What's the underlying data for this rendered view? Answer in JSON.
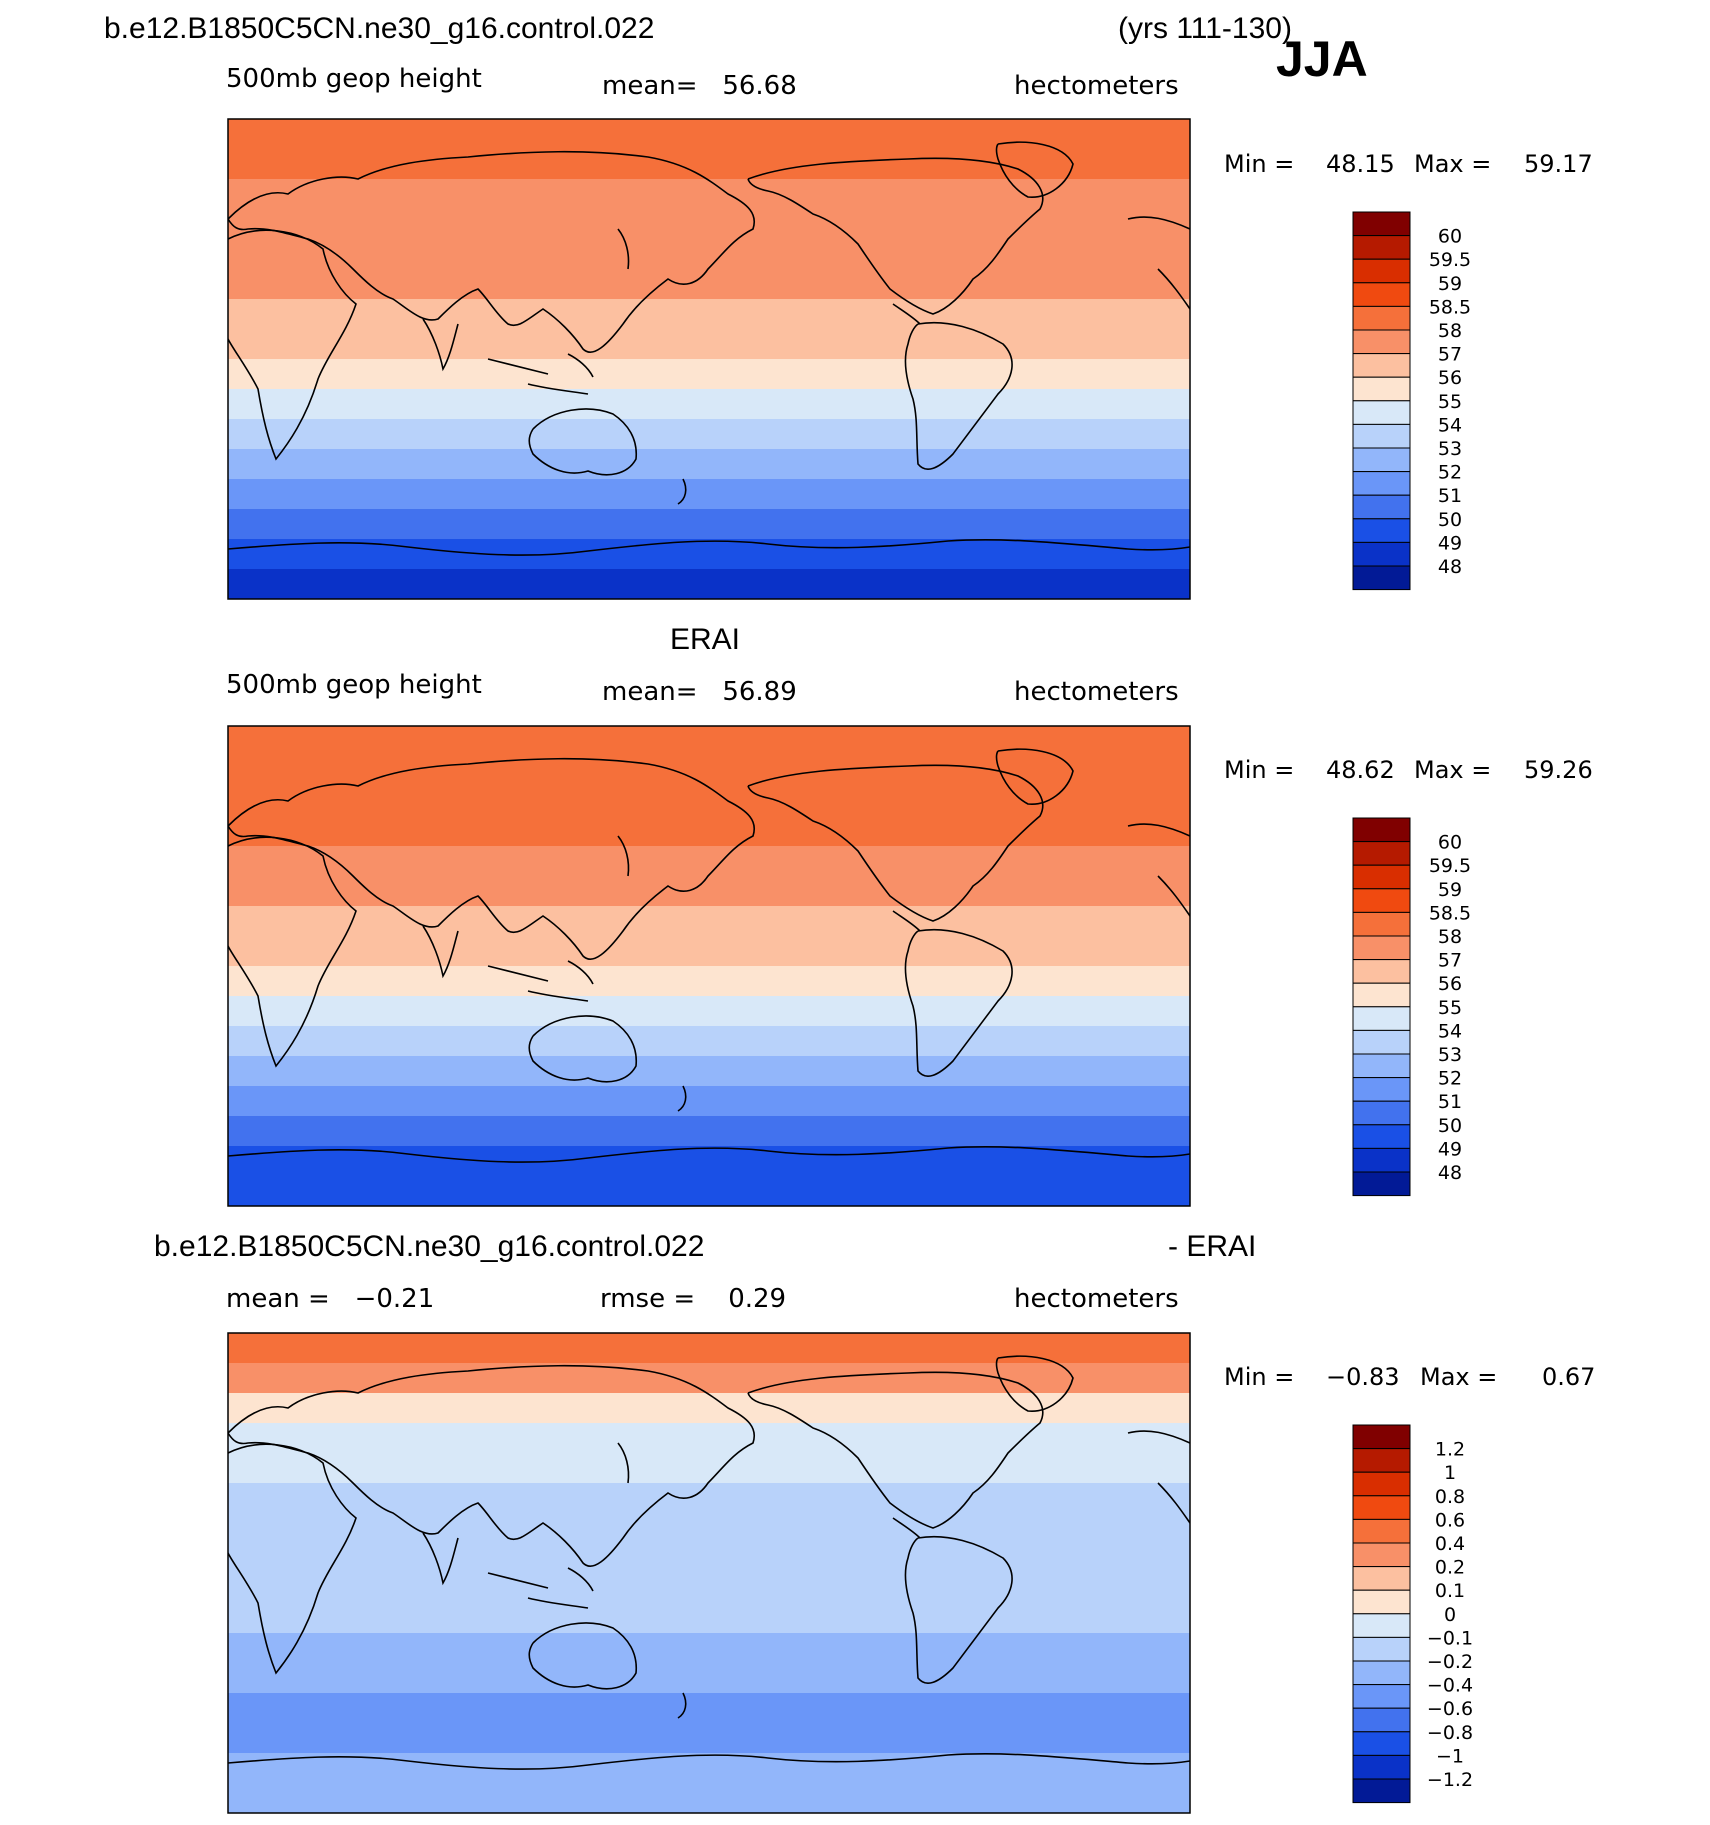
{
  "header": {
    "case_name": "b.e12.B1850C5CN.ne30_g16.control.022",
    "years": "(yrs 111-130)",
    "season": "JJA"
  },
  "panels": [
    {
      "id": "model",
      "title": "",
      "variable": "500mb geop height",
      "stat1": "mean=   56.68",
      "stat2": "",
      "units": "hectometers",
      "minmax": {
        "min_label": "Min =",
        "min": "48.15",
        "max_label": "Max =",
        "max": "59.17"
      },
      "bands": [
        58.4,
        58.2,
        57.9,
        57.6,
        57.3,
        57.0,
        56.5,
        56.0,
        55.4,
        54.7,
        53.6,
        52.4,
        51.3,
        50.2,
        49.3,
        48.7
      ]
    },
    {
      "id": "obs",
      "title": "ERAI",
      "variable": "500mb geop height",
      "stat1": "mean=   56.89",
      "stat2": "",
      "units": "hectometers",
      "minmax": {
        "min_label": "Min =",
        "min": "48.62",
        "max_label": "Max =",
        "max": "59.26"
      },
      "bands": [
        58.3,
        58.4,
        58.3,
        58.0,
        57.7,
        57.3,
        56.8,
        56.3,
        55.6,
        54.8,
        53.7,
        52.5,
        51.4,
        50.4,
        49.6,
        49.0
      ]
    },
    {
      "id": "diff",
      "title": "b.e12.B1850C5CN.ne30_g16.control.022",
      "title_right": "- ERAI",
      "variable": "mean =   −0.21",
      "stat1": "rmse =    0.29",
      "stat2": "",
      "units": "hectometers",
      "minmax": {
        "min_label": "Min =",
        "min": "−0.83",
        "max_label": "Max =",
        "max": "0.67"
      },
      "bands": [
        0.45,
        0.3,
        0.05,
        -0.05,
        -0.08,
        -0.15,
        -0.18,
        -0.18,
        -0.18,
        -0.2,
        -0.25,
        -0.35,
        -0.45,
        -0.5,
        -0.4,
        -0.3
      ]
    }
  ],
  "colorbars": {
    "height": {
      "labels": [
        "60",
        "59.5",
        "59",
        "58.5",
        "58",
        "57",
        "56",
        "55",
        "54",
        "53",
        "52",
        "51",
        "50",
        "49",
        "48"
      ],
      "colors": [
        "#800000",
        "#b51a00",
        "#d92e00",
        "#f04a10",
        "#f5703a",
        "#f89068",
        "#fcc0a0",
        "#fde4d0",
        "#d8e8f8",
        "#b8d2fa",
        "#92b6fa",
        "#6a96f8",
        "#4272ee",
        "#1a50e6",
        "#0a32c8",
        "#021a96"
      ]
    },
    "diff": {
      "labels": [
        "1.2",
        "1",
        "0.8",
        "0.6",
        "0.4",
        "0.2",
        "0.1",
        "0",
        "−0.1",
        "−0.2",
        "−0.4",
        "−0.6",
        "−0.8",
        "−1",
        "−1.2"
      ],
      "colors": [
        "#800000",
        "#b51a00",
        "#d92e00",
        "#f04a10",
        "#f5703a",
        "#f89068",
        "#fcc0a0",
        "#fde4d0",
        "#d8e8f8",
        "#b8d2fa",
        "#92b6fa",
        "#6a96f8",
        "#4272ee",
        "#1a50e6",
        "#0a32c8",
        "#021a96"
      ]
    }
  }
}
